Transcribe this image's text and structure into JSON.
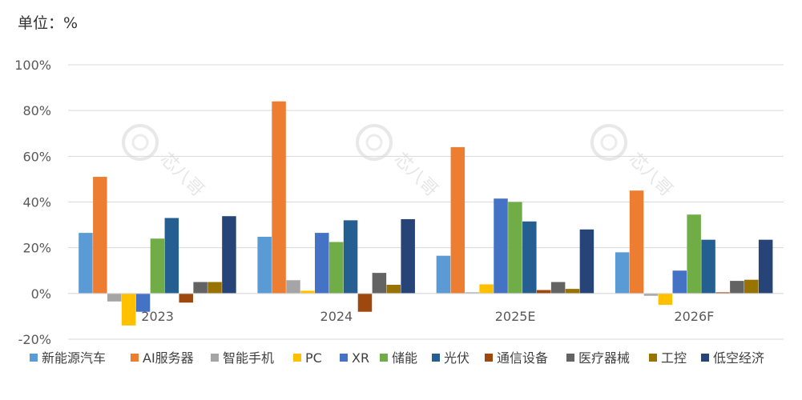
{
  "unit_label": "单位：%",
  "watermark": "芯八哥",
  "chart_data": {
    "type": "bar",
    "title": "",
    "xlabel": "",
    "ylabel": "",
    "unit": "%",
    "ylim": [
      -20,
      100
    ],
    "yticks": [
      -20,
      0,
      20,
      40,
      60,
      80,
      100
    ],
    "ytick_labels": [
      "-20%",
      "0%",
      "20%",
      "40%",
      "60%",
      "80%",
      "100%"
    ],
    "grid": true,
    "legend_position": "bottom",
    "categories": [
      "2023",
      "2024",
      "2025E",
      "2026F"
    ],
    "series": [
      {
        "name": "新能源汽车",
        "color": "#5b9bd5",
        "values": [
          26.5,
          24.8,
          16.5,
          18.0
        ]
      },
      {
        "name": "AI服务器",
        "color": "#ed7d31",
        "values": [
          51.0,
          84.0,
          64.0,
          45.0
        ]
      },
      {
        "name": "智能手机",
        "color": "#a5a5a5",
        "values": [
          -3.5,
          5.8,
          0.5,
          -1.0
        ]
      },
      {
        "name": "PC",
        "color": "#ffc000",
        "values": [
          -14.0,
          1.2,
          4.0,
          -5.0
        ]
      },
      {
        "name": "XR",
        "color": "#4472c4",
        "values": [
          -8.0,
          26.5,
          41.5,
          10.0
        ]
      },
      {
        "name": "储能",
        "color": "#70ad47",
        "values": [
          24.0,
          22.5,
          40.0,
          34.5
        ]
      },
      {
        "name": "光伏",
        "color": "#255e91",
        "values": [
          33.0,
          32.0,
          31.5,
          23.5
        ]
      },
      {
        "name": "通信设备",
        "color": "#9e480e",
        "values": [
          -4.0,
          -8.0,
          1.5,
          0.5
        ]
      },
      {
        "name": "医疗器械",
        "color": "#636363",
        "values": [
          5.0,
          9.0,
          5.0,
          5.5
        ]
      },
      {
        "name": "工控",
        "color": "#997300",
        "values": [
          5.0,
          3.8,
          2.0,
          6.0
        ]
      },
      {
        "name": "低空经济",
        "color": "#264478",
        "values": [
          33.8,
          32.5,
          28.0,
          23.5
        ]
      }
    ]
  }
}
